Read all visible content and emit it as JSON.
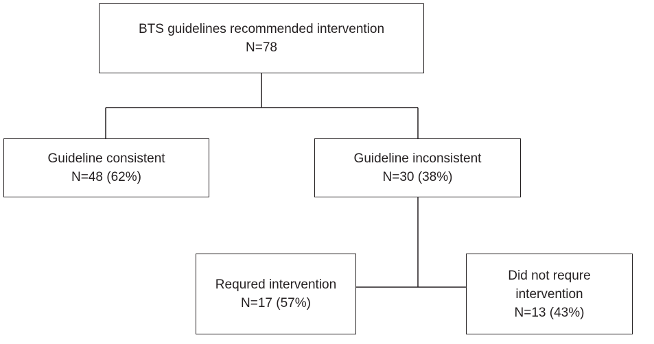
{
  "diagram": {
    "root": {
      "title": "BTS guidelines recommended intervention",
      "count": "N=78"
    },
    "consistent": {
      "title": "Guideline consistent",
      "count": "N=48 (62%)"
    },
    "inconsistent": {
      "title": "Guideline inconsistent",
      "count": "N=30 (38%)"
    },
    "required": {
      "title": "Requred intervention",
      "count": "N=17 (57%)"
    },
    "not_required": {
      "title_line1": "Did not requre",
      "title_line2": "intervention",
      "count": "N=13 (43%)"
    }
  }
}
